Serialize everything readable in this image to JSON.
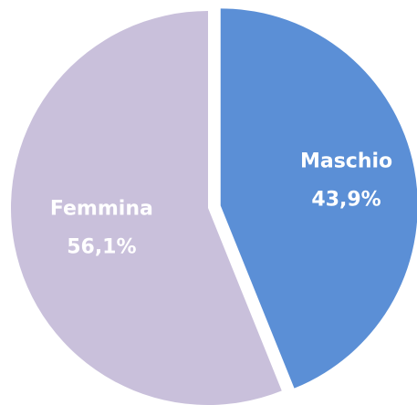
{
  "chart_data": {
    "type": "pie",
    "categories": [
      "Maschio",
      "Femmina"
    ],
    "values": [
      43.9,
      56.1
    ],
    "value_labels": [
      "43,9%",
      "56,1%"
    ],
    "colors": [
      "#5b8fd6",
      "#c9c0db"
    ]
  }
}
